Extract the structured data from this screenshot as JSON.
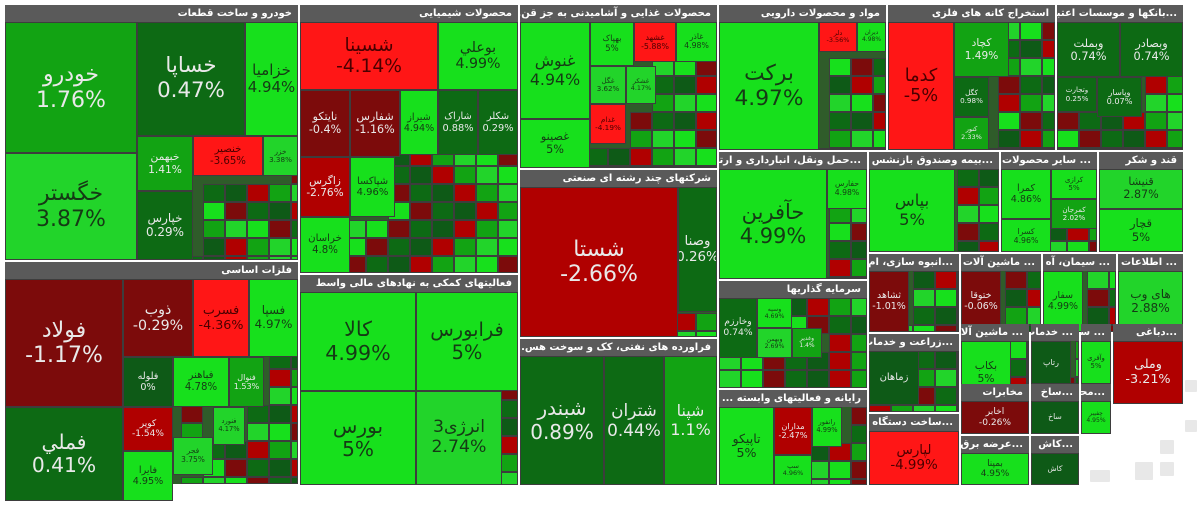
{
  "chart_data": {
    "type": "treemap",
    "colors": {
      "gain_strong": "#17e01c",
      "gain": "#22d42a",
      "gain_mid": "#12a313",
      "gain_weak": "#0d6a14",
      "flat": "#0e5a17",
      "loss_weak": "#7c0b0b",
      "loss": "#b00000",
      "loss_strong": "#ff1616"
    },
    "sectors": [
      {
        "name": "خودرو و ساخت قطعات",
        "tiles": [
          {
            "name": "خودرو",
            "value": "1.76%"
          },
          {
            "name": "خگستر",
            "value": "3.87%"
          },
          {
            "name": "خساپا",
            "value": "0.47%"
          },
          {
            "name": "خزامیا",
            "value": "4.94%"
          },
          {
            "name": "خبهمن",
            "value": "1.41%"
          },
          {
            "name": "خنصیر",
            "value": "-3.65%"
          },
          {
            "name": "خزر",
            "value": "3.38%"
          },
          {
            "name": "خپارس",
            "value": "0.29%"
          }
        ]
      },
      {
        "name": "فلزات اساسی",
        "tiles": [
          {
            "name": "فولاد",
            "value": "-1.17%"
          },
          {
            "name": "فملي",
            "value": "0.41%"
          },
          {
            "name": "ذوب",
            "value": "-0.29%"
          },
          {
            "name": "فسرب",
            "value": "-4.36%"
          },
          {
            "name": "فسپا",
            "value": "4.97%"
          },
          {
            "name": "فباهنر",
            "value": "4.78%"
          },
          {
            "name": "فنوال",
            "value": "1.53%"
          },
          {
            "name": "کویر",
            "value": "-1.54%"
          },
          {
            "name": "فجر",
            "value": "3.75%"
          },
          {
            "name": "فایرا",
            "value": "4.95%"
          },
          {
            "name": "فنورد",
            "value": "4.17%"
          },
          {
            "name": "فلوله",
            "value": "0%"
          }
        ]
      },
      {
        "name": "محصولات شیمیایی",
        "tiles": [
          {
            "name": "شسینا",
            "value": "-4.14%"
          },
          {
            "name": "بوعلي",
            "value": "4.99%"
          },
          {
            "name": "شیراز",
            "value": "4.94%"
          },
          {
            "name": "شاراک",
            "value": "0.88%"
          },
          {
            "name": "شکلر",
            "value": "0.29%"
          },
          {
            "name": "شپاکسا",
            "value": "4.96%"
          },
          {
            "name": "خراسان",
            "value": "4.8%"
          },
          {
            "name": "زاگرس",
            "value": "-2.76%"
          },
          {
            "name": "شفارس",
            "value": "-1.16%"
          },
          {
            "name": "نایتکو",
            "value": "-0.4%"
          }
        ]
      },
      {
        "name": "فعالیتهای کمکی به نهادهای مالی واسط",
        "tiles": [
          {
            "name": "کالا",
            "value": "4.99%"
          },
          {
            "name": "فرابورس",
            "value": "5%"
          },
          {
            "name": "بورس",
            "value": "5%"
          },
          {
            "name": "انرژی3",
            "value": "2.74%"
          }
        ]
      },
      {
        "name": "محصولات غذایی و آشامیدنی به جز قن...",
        "tiles": [
          {
            "name": "غنوش",
            "value": "4.94%"
          },
          {
            "name": "غصینو",
            "value": "5%"
          },
          {
            "name": "بهپاک",
            "value": "5%"
          },
          {
            "name": "غشهد",
            "value": "-5.88%"
          },
          {
            "name": "غاذر",
            "value": "4.98%"
          },
          {
            "name": "غگل",
            "value": "3.62%"
          },
          {
            "name": "غشکر",
            "value": "4.17%"
          },
          {
            "name": "غدام",
            "value": "-4.19%"
          }
        ]
      },
      {
        "name": "شرکتهای چند رشته ای صنعتی",
        "tiles": [
          {
            "name": "شستا",
            "value": "-2.66%"
          },
          {
            "name": "وصنا",
            "value": "0.26%"
          }
        ]
      },
      {
        "name": "فراورده های نفتی، کک و سوخت هس...",
        "tiles": [
          {
            "name": "شبندر",
            "value": "0.89%"
          },
          {
            "name": "شتران",
            "value": "0.44%"
          },
          {
            "name": "شپنا",
            "value": "1.1%"
          }
        ]
      },
      {
        "name": "مواد و محصولات دارویی",
        "tiles": [
          {
            "name": "برکت",
            "value": "4.97%"
          },
          {
            "name": "دلر",
            "value": "-3.56%"
          },
          {
            "name": "دیران",
            "value": "4.98%"
          }
        ]
      },
      {
        "name": "...حمل ونقل، انبارداری و ارتبا",
        "tiles": [
          {
            "name": "حآفرین",
            "value": "4.99%"
          },
          {
            "name": "حفارس",
            "value": "4.98%"
          }
        ]
      },
      {
        "name": "سرمایه گذاریها",
        "tiles": [
          {
            "name": "وخارزم",
            "value": "0.74%"
          },
          {
            "name": "وسپه",
            "value": "4.69%"
          },
          {
            "name": "وبهمن",
            "value": "2.69%"
          },
          {
            "name": "وغدیر",
            "value": "1.4%"
          }
        ]
      },
      {
        "name": "رایانه و فعالیتهای وابسته ...",
        "tiles": [
          {
            "name": "تاپیکو",
            "value": "5%"
          },
          {
            "name": "سپ",
            "value": "4.96%"
          },
          {
            "name": "رانفور",
            "value": "4.99%"
          },
          {
            "name": "مداران",
            "value": "-2.47%"
          }
        ]
      },
      {
        "name": "استخراج کانه های فلزی",
        "tiles": [
          {
            "name": "کدما",
            "value": "-5%"
          },
          {
            "name": "کچاد",
            "value": "1.49%"
          },
          {
            "name": "کگل",
            "value": "0.98%"
          },
          {
            "name": "کنور",
            "value": "2.33%"
          }
        ]
      },
      {
        "name": "...بانکها و موسسات اعتبا",
        "tiles": [
          {
            "name": "وبملت",
            "value": "0.74%"
          },
          {
            "name": "وبصادر",
            "value": "0.74%"
          },
          {
            "name": "وتجارت",
            "value": "0.25%"
          },
          {
            "name": "وپاسار",
            "value": "0.07%"
          }
        ]
      },
      {
        "name": "...بیمه وصندوق بازنشس",
        "tiles": [
          {
            "name": "بپاس",
            "value": "5%"
          }
        ]
      },
      {
        "name": "... سایر محصولات",
        "tiles": [
          {
            "name": "کمرا",
            "value": "4.86%"
          },
          {
            "name": "کسرا",
            "value": "4.96%"
          },
          {
            "name": "کرازی",
            "value": "5%"
          },
          {
            "name": "کمرجان",
            "value": "2.02%"
          }
        ]
      },
      {
        "name": "قند و شکر",
        "tiles": [
          {
            "name": "قنیشا",
            "value": "2.87%"
          },
          {
            "name": "قچار",
            "value": "5%"
          }
        ]
      },
      {
        "name": "...انبوه سازی، ام",
        "tiles": [
          {
            "name": "ثشاهد",
            "value": "-1.01%"
          }
        ]
      },
      {
        "name": "... ماشین آلات و",
        "tiles": [
          {
            "name": "ختوقا",
            "value": "-0.06%"
          }
        ]
      },
      {
        "name": "... سیمان، آه",
        "tiles": [
          {
            "name": "سفار",
            "value": "4.99%"
          }
        ]
      },
      {
        "name": "... اطلاعات و",
        "tiles": [
          {
            "name": "های وب",
            "value": "2.88%"
          }
        ]
      },
      {
        "name": "...زراعت و خدمات",
        "tiles": [
          {
            "name": "زماهان",
            "value": ""
          }
        ]
      },
      {
        "name": "... ماشین آلات",
        "tiles": [
          {
            "name": "بکاب",
            "value": "5%"
          }
        ]
      },
      {
        "name": "... خدمات",
        "tiles": [
          {
            "name": "رتاپ",
            "value": ""
          }
        ]
      },
      {
        "name": "... سایر و",
        "tiles": [
          {
            "name": "وآفری",
            "value": "5%"
          }
        ]
      },
      {
        "name": "...دباغی",
        "tiles": [
          {
            "name": "وملی",
            "value": "-3.21%"
          }
        ]
      },
      {
        "name": "...ساخت دستگاه",
        "tiles": [
          {
            "name": "لپارس",
            "value": "-4.99%"
          }
        ]
      },
      {
        "name": "مخابرات",
        "tiles": [
          {
            "name": "اخابر",
            "value": "-0.26%"
          }
        ]
      },
      {
        "name": "...عرضه برق",
        "tiles": [
          {
            "name": "بمپنا",
            "value": "4.95%"
          }
        ]
      },
      {
        "name": "...ساخ",
        "tiles": [
          {
            "name": "ساخ",
            "value": ""
          }
        ]
      },
      {
        "name": "...محا",
        "tiles": [
          {
            "name": "چفیبر",
            "value": "4.95%"
          }
        ]
      },
      {
        "name": "...کاش",
        "tiles": [
          {
            "name": "کاش",
            "value": ""
          }
        ]
      }
    ]
  }
}
